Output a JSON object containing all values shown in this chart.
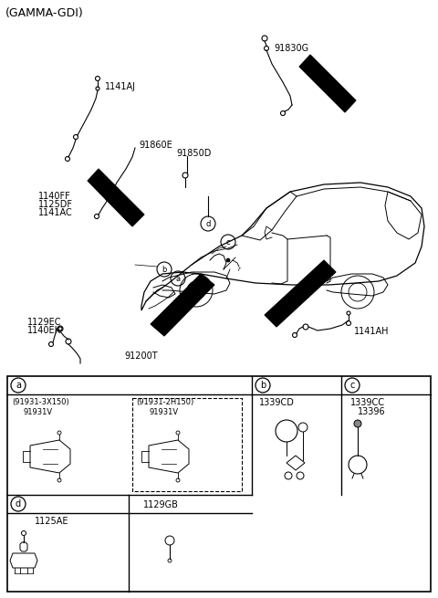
{
  "bg_color": "#ffffff",
  "line_color": "#000000",
  "labels": {
    "gamma_gdi": "(GAMMA-GDI)",
    "91830G": "91830G",
    "1141AJ": "1141AJ",
    "91860E": "91860E",
    "91850D": "91850D",
    "1140FF": "1140FF",
    "1125DF": "1125DF",
    "1141AC": "1141AC",
    "1129EC": "1129EC",
    "1140EK": "1140EK",
    "91200T": "91200T",
    "1141AH": "1141AH"
  },
  "table": {
    "a1_line1": "(91931-3X150)",
    "a1_line2": "91931V",
    "a2_line1": "(91931-2H150)",
    "a2_line2": "91931V",
    "b_label": "1339CD",
    "c_label1": "1339CC",
    "c_label2": "13396",
    "d_label": "d",
    "d_part": "1125AE",
    "d2_part": "1129GB"
  },
  "font_title": 9,
  "font_label": 7,
  "font_table": 7
}
